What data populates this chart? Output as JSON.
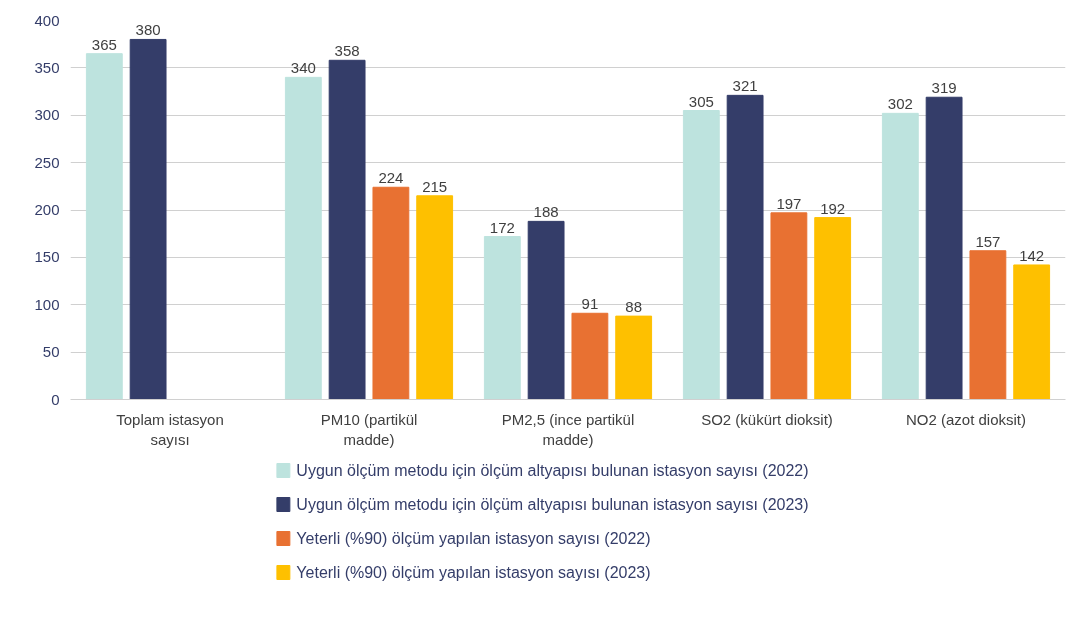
{
  "chart_data": {
    "type": "bar",
    "categories": [
      "Toplam istasyon sayısı",
      "PM10 (partikül madde)",
      "PM2,5 (ince partikül madde)",
      "SO2 (kükürt dioksit)",
      "NO2 (azot dioksit)"
    ],
    "series": [
      {
        "name": "Uygun ölçüm metodu için ölçüm altyapısı bulunan istasyon sayısı (2022)",
        "color": "#bde3de",
        "values": [
          365,
          340,
          172,
          305,
          302
        ]
      },
      {
        "name": "Uygun ölçüm metodu için ölçüm altyapısı bulunan istasyon sayısı (2023)",
        "color": "#343d69",
        "values": [
          380,
          358,
          188,
          321,
          319
        ]
      },
      {
        "name": "Yeterli (%90) ölçüm yapılan istasyon sayısı (2022)",
        "color": "#e87132",
        "values": [
          null,
          224,
          91,
          197,
          157
        ]
      },
      {
        "name": "Yeterli (%90) ölçüm yapılan istasyon sayısı (2023)",
        "color": "#fec000",
        "values": [
          null,
          215,
          88,
          192,
          142
        ]
      }
    ],
    "ylim": [
      0,
      400
    ],
    "yticks": [
      0,
      50,
      100,
      150,
      200,
      250,
      300,
      350,
      400
    ],
    "grid": "y",
    "legend": "bottom",
    "data_labels": true
  }
}
